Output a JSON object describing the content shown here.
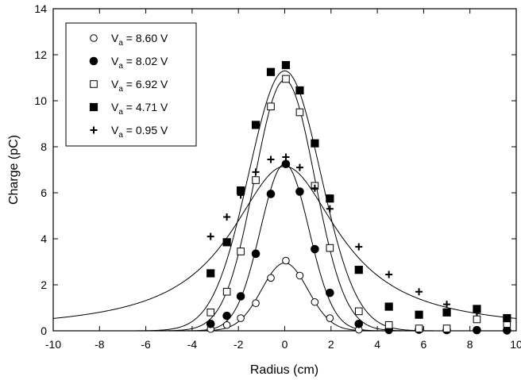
{
  "chart_data": {
    "type": "scatter",
    "title": "",
    "xlabel": "Radius (cm)",
    "ylabel": "Charge (pC)",
    "xlim": [
      -10,
      10
    ],
    "ylim": [
      0,
      14
    ],
    "xticks": [
      -10,
      -8,
      -6,
      -4,
      -2,
      0,
      2,
      4,
      6,
      8,
      10
    ],
    "yticks": [
      0,
      2,
      4,
      6,
      8,
      10,
      12,
      14
    ],
    "grid": false,
    "legend": {
      "position": "top-left",
      "entries": [
        {
          "var": "V",
          "sub": "a",
          "text": " = 8.60 V",
          "marker": "open-circle"
        },
        {
          "var": "V",
          "sub": "a",
          "text": " = 8.02 V",
          "marker": "filled-circle"
        },
        {
          "var": "V",
          "sub": "a",
          "text": " = 6.92 V",
          "marker": "open-square"
        },
        {
          "var": "V",
          "sub": "a",
          "text": " = 4.71 V",
          "marker": "filled-square"
        },
        {
          "var": "V",
          "sub": "a",
          "text": " = 0.95 V",
          "marker": "plus"
        }
      ]
    },
    "series": [
      {
        "name": "Va = 8.60 V",
        "marker": "open-circle",
        "points": [
          [
            -3.2,
            0.08
          ],
          [
            -2.5,
            0.25
          ],
          [
            -1.9,
            0.55
          ],
          [
            -1.25,
            1.2
          ],
          [
            -0.6,
            2.3
          ],
          [
            0.05,
            3.05
          ],
          [
            0.65,
            2.4
          ],
          [
            1.3,
            1.25
          ],
          [
            1.95,
            0.55
          ],
          [
            3.2,
            0.05
          ],
          [
            4.5,
            0.02
          ]
        ],
        "fit": {
          "amplitude": 2.95,
          "sigma": 1.0
        }
      },
      {
        "name": "Va = 8.02 V",
        "marker": "filled-circle",
        "points": [
          [
            -3.2,
            0.3
          ],
          [
            -2.5,
            0.65
          ],
          [
            -1.9,
            1.5
          ],
          [
            -1.25,
            3.35
          ],
          [
            -0.6,
            5.95
          ],
          [
            0.05,
            7.25
          ],
          [
            0.65,
            6.05
          ],
          [
            1.3,
            3.55
          ],
          [
            1.95,
            1.65
          ],
          [
            3.2,
            0.3
          ],
          [
            4.5,
            0.05
          ],
          [
            5.8,
            0.05
          ],
          [
            7.0,
            0.03
          ],
          [
            8.3,
            0.03
          ],
          [
            9.6,
            0.02
          ]
        ],
        "fit": {
          "amplitude": 7.25,
          "sigma": 1.05
        }
      },
      {
        "name": "Va = 6.92 V",
        "marker": "open-square",
        "points": [
          [
            -3.2,
            0.8
          ],
          [
            -2.5,
            1.7
          ],
          [
            -1.9,
            3.45
          ],
          [
            -1.25,
            6.55
          ],
          [
            -0.6,
            9.75
          ],
          [
            0.05,
            10.95
          ],
          [
            0.65,
            9.5
          ],
          [
            1.3,
            6.3
          ],
          [
            1.95,
            3.6
          ],
          [
            3.2,
            0.85
          ],
          [
            4.5,
            0.25
          ],
          [
            5.8,
            0.1
          ],
          [
            7.0,
            0.1
          ],
          [
            8.3,
            0.5
          ],
          [
            9.6,
            0.3
          ]
        ],
        "fit": {
          "amplitude": 10.9,
          "sigma": 1.3
        }
      },
      {
        "name": "Va = 4.71 V",
        "marker": "filled-square",
        "points": [
          [
            -3.2,
            2.5
          ],
          [
            -2.5,
            3.85
          ],
          [
            -1.9,
            6.1
          ],
          [
            -1.25,
            8.95
          ],
          [
            -0.6,
            11.25
          ],
          [
            0.05,
            11.55
          ],
          [
            0.65,
            10.45
          ],
          [
            1.3,
            8.15
          ],
          [
            1.95,
            5.75
          ],
          [
            3.2,
            2.65
          ],
          [
            4.5,
            1.05
          ],
          [
            5.8,
            0.7
          ],
          [
            7.0,
            0.8
          ],
          [
            8.3,
            0.95
          ],
          [
            9.6,
            0.55
          ]
        ],
        "fit": {
          "amplitude": 11.3,
          "sigma": 1.55
        }
      },
      {
        "name": "Va = 0.95 V",
        "marker": "plus",
        "points": [
          [
            -3.2,
            4.1
          ],
          [
            -2.5,
            4.95
          ],
          [
            -1.9,
            5.9
          ],
          [
            -1.25,
            6.9
          ],
          [
            -0.6,
            7.45
          ],
          [
            0.05,
            7.55
          ],
          [
            0.65,
            7.1
          ],
          [
            1.3,
            6.2
          ],
          [
            1.95,
            5.3
          ],
          [
            3.2,
            3.65
          ],
          [
            4.5,
            2.45
          ],
          [
            5.8,
            1.7
          ],
          [
            7.0,
            1.15
          ],
          [
            8.3,
            0.8
          ],
          [
            9.6,
            0.55
          ]
        ],
        "fit": {
          "amplitude": 7.15,
          "gamma": 2.85
        }
      }
    ]
  }
}
